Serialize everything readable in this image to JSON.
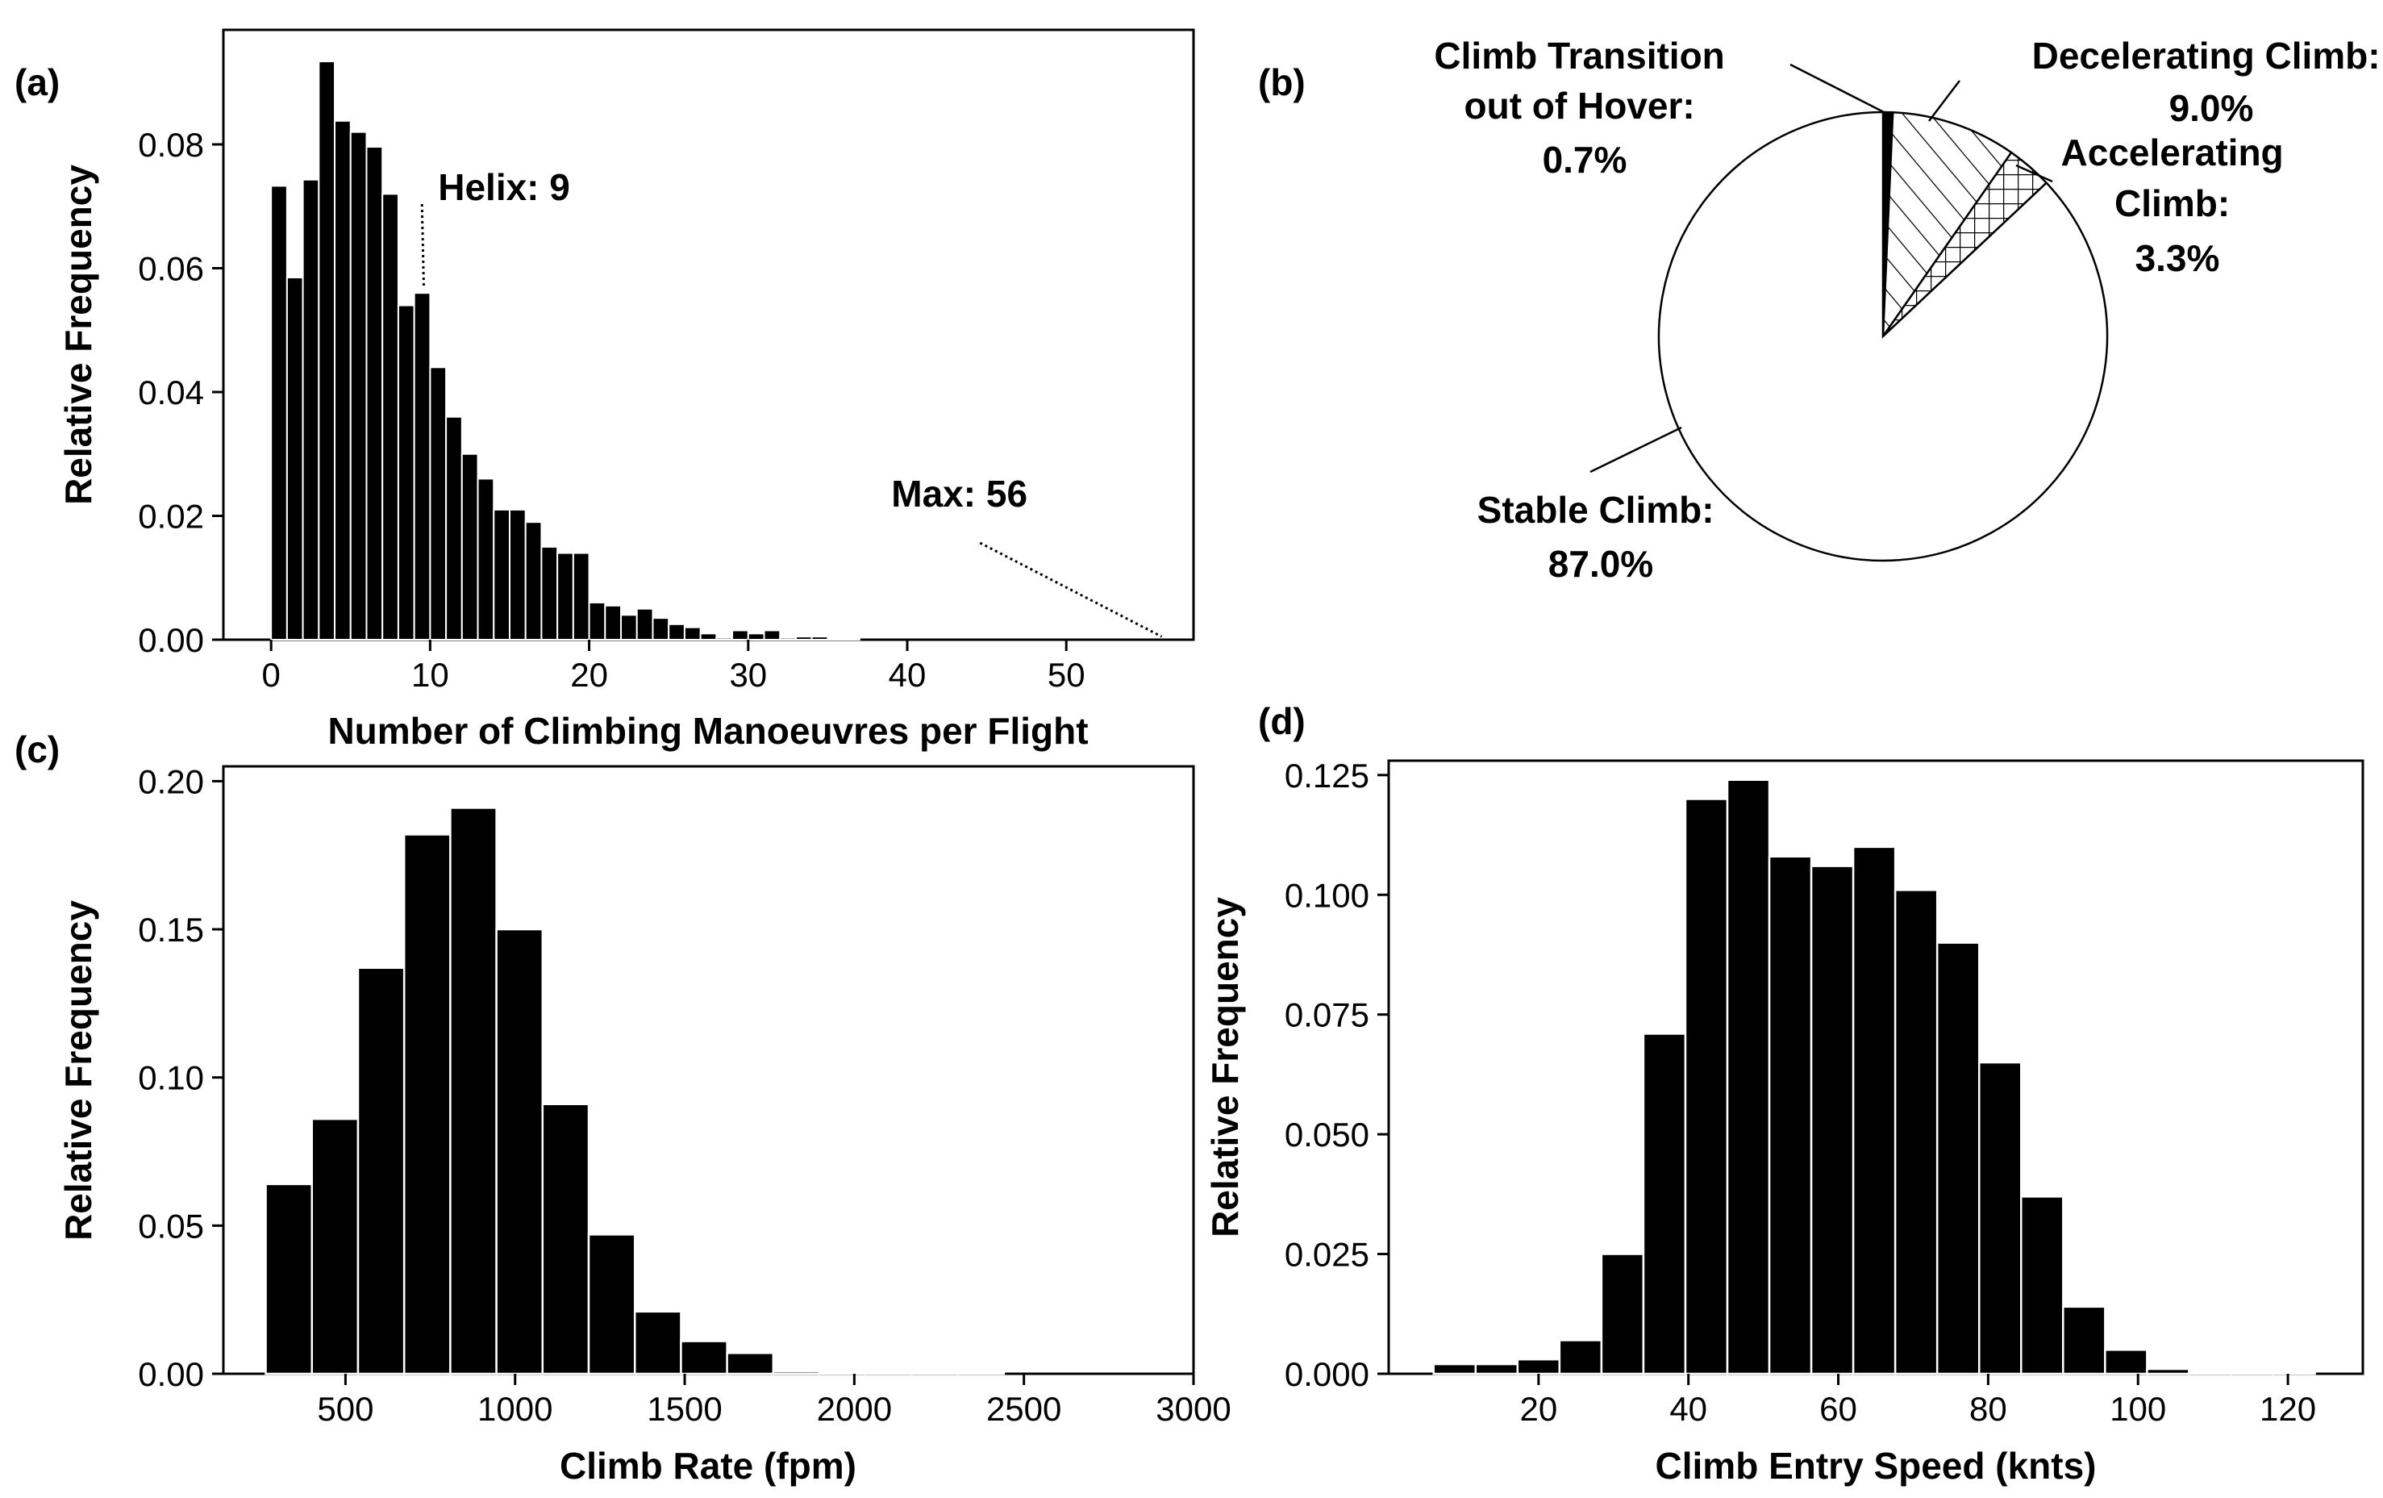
{
  "panel_labels": {
    "a": "(a)",
    "b": "(b)",
    "c": "(c)",
    "d": "(d)"
  },
  "chart_data": [
    {
      "id": "a",
      "type": "bar",
      "xlabel": "Number of Climbing Manoeuvres per Flight",
      "ylabel": "Relative Frequency",
      "xlim": [
        -3,
        58
      ],
      "ylim": [
        0,
        0.0985
      ],
      "xticks": [
        0,
        10,
        20,
        30,
        40,
        50
      ],
      "xtick_labels": [
        "0",
        "10",
        "20",
        "30",
        "40",
        "50"
      ],
      "yticks": [
        0,
        0.02,
        0.04,
        0.06,
        0.08
      ],
      "ytick_labels": [
        "0.00",
        "0.02",
        "0.04",
        "0.06",
        "0.08"
      ],
      "x": [
        0,
        1,
        2,
        3,
        4,
        5,
        6,
        7,
        8,
        9,
        10,
        11,
        12,
        13,
        14,
        15,
        16,
        17,
        18,
        19,
        20,
        21,
        22,
        23,
        24,
        25,
        26,
        27,
        28,
        29,
        30,
        31,
        32,
        33,
        34,
        35,
        36
      ],
      "values": [
        0.0733,
        0.0585,
        0.0743,
        0.0934,
        0.0838,
        0.082,
        0.0796,
        0.072,
        0.054,
        0.056,
        0.044,
        0.036,
        0.03,
        0.026,
        0.021,
        0.021,
        0.019,
        0.015,
        0.014,
        0.014,
        0.006,
        0.0055,
        0.004,
        0.005,
        0.0035,
        0.0025,
        0.002,
        0.001,
        0.0003,
        0.0015,
        0.001,
        0.0015,
        0.0003,
        0.0005,
        0.0005,
        0.0001,
        0.0001
      ],
      "bar_width": 1.0,
      "annotations": [
        {
          "text": "Helix: 9",
          "x": 10.5,
          "y": 0.071,
          "target_x": 9.6,
          "target_y": 0.057,
          "line": "dotted"
        },
        {
          "text": "Max: 56",
          "x": 39,
          "y": 0.0215,
          "target_x": 56,
          "target_y": 0.0005,
          "line": "dotted"
        }
      ]
    },
    {
      "id": "b",
      "type": "pie",
      "slices": [
        {
          "label": "Climb Transition out of Hover",
          "value": 0.7,
          "display": "0.7%",
          "pattern": "solid"
        },
        {
          "label": "Decelerating Climb",
          "value": 9.0,
          "display": "9.0%",
          "pattern": "hatch"
        },
        {
          "label": "Accelerating Climb",
          "value": 3.3,
          "display": "3.3%",
          "pattern": "crosshatch"
        },
        {
          "label": "Stable Climb",
          "value": 87.0,
          "display": "87.0%",
          "pattern": "none"
        }
      ],
      "label_lines": {
        "hover": [
          "Climb Transition",
          "out of Hover:",
          "0.7%"
        ],
        "decel": [
          "Decelerating Climb:",
          "9.0%"
        ],
        "accel": [
          "Accelerating",
          "Climb:",
          "3.3%"
        ],
        "stable": [
          "Stable Climb:",
          "87.0%"
        ]
      }
    },
    {
      "id": "c",
      "type": "bar",
      "xlabel": "Climb Rate (fpm)",
      "ylabel": "Relative Frequency",
      "xlim": [
        140,
        3000
      ],
      "ylim": [
        0,
        0.205
      ],
      "xticks": [
        500,
        1000,
        1500,
        2000,
        2500,
        3000
      ],
      "xtick_labels": [
        "500",
        "1000",
        "1500",
        "2000",
        "2500",
        "3000"
      ],
      "yticks": [
        0,
        0.05,
        0.1,
        0.15,
        0.2
      ],
      "ytick_labels": [
        "0.00",
        "0.05",
        "0.10",
        "0.15",
        "0.20"
      ],
      "bin_start": 265,
      "bin_width": 136,
      "values": [
        0.064,
        0.086,
        0.137,
        0.182,
        0.191,
        0.15,
        0.091,
        0.047,
        0.021,
        0.011,
        0.007,
        0.0008,
        0.0003,
        0.0002,
        0.0001,
        0.0001
      ]
    },
    {
      "id": "d",
      "type": "bar",
      "xlabel": "Climb Entry Speed (knts)",
      "ylabel": "Relative Frequency",
      "xlim": [
        0,
        130
      ],
      "ylim": [
        0,
        0.128
      ],
      "xticks": [
        20,
        40,
        60,
        80,
        100,
        120
      ],
      "xtick_labels": [
        "20",
        "40",
        "60",
        "80",
        "100",
        "120"
      ],
      "yticks": [
        0,
        0.025,
        0.05,
        0.075,
        0.1,
        0.125
      ],
      "ytick_labels": [
        "0.000",
        "0.025",
        "0.050",
        "0.075",
        "0.100",
        "0.125"
      ],
      "bin_start": 6,
      "bin_width": 5.6,
      "values": [
        0.002,
        0.002,
        0.003,
        0.007,
        0.025,
        0.071,
        0.12,
        0.124,
        0.108,
        0.106,
        0.11,
        0.101,
        0.09,
        0.065,
        0.037,
        0.014,
        0.005,
        0.001,
        0.0003,
        0.0002,
        0.0001
      ]
    }
  ]
}
